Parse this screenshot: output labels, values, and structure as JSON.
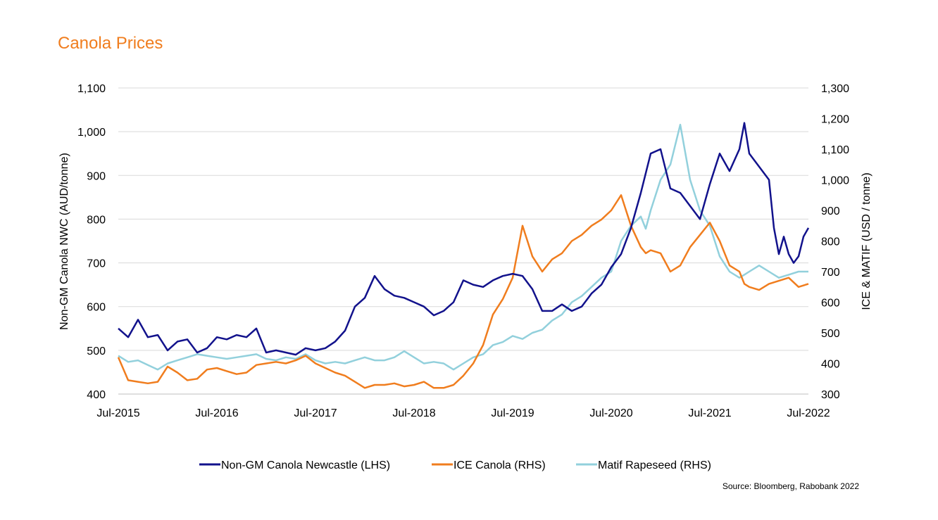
{
  "title": "Canola Prices",
  "source": "Source: Bloomberg, Rabobank 2022",
  "colors": {
    "newcastle": "#12128c",
    "ice": "#f07d1e",
    "matif": "#92d0dc",
    "title": "#f07d1e",
    "grid": "#d9d9d9"
  },
  "chart_data": {
    "type": "line",
    "title": "Canola Prices",
    "xlabel": "",
    "ylabel_left": "Non-GM Canola NWC (AUD/tonne)",
    "ylabel_right": "ICE & MATIF  (USD / tonne)",
    "x_tick_labels": [
      "Jul-2015",
      "Jul-2016",
      "Jul-2017",
      "Jul-2018",
      "Jul-2019",
      "Jul-2020",
      "Jul-2021",
      "Jul-2022"
    ],
    "xlim": [
      2015.5,
      2022.5
    ],
    "y_left_lim": [
      400,
      1100
    ],
    "y_left_ticks": [
      "400",
      "500",
      "600",
      "700",
      "800",
      "900",
      "1,000",
      "1,100"
    ],
    "y_right_lim": [
      300,
      1300
    ],
    "y_right_ticks": [
      "300",
      "400",
      "500",
      "600",
      "700",
      "800",
      "900",
      "1,000",
      "1,100",
      "1,200",
      "1,300"
    ],
    "grid": "horizontal",
    "legend": "bottom",
    "series": [
      {
        "name": "Non-GM Canola Newcastle (LHS)",
        "axis": "left",
        "x": [
          2015.5,
          2015.6,
          2015.7,
          2015.8,
          2015.9,
          2016.0,
          2016.1,
          2016.2,
          2016.3,
          2016.4,
          2016.5,
          2016.6,
          2016.7,
          2016.8,
          2016.9,
          2017.0,
          2017.1,
          2017.2,
          2017.3,
          2017.4,
          2017.5,
          2017.6,
          2017.7,
          2017.8,
          2017.9,
          2018.0,
          2018.1,
          2018.2,
          2018.3,
          2018.4,
          2018.5,
          2018.6,
          2018.7,
          2018.75,
          2018.8,
          2018.9,
          2019.0,
          2019.1,
          2019.2,
          2019.3,
          2019.4,
          2019.5,
          2019.6,
          2019.7,
          2019.8,
          2019.9,
          2020.0,
          2020.1,
          2020.2,
          2020.3,
          2020.4,
          2020.5,
          2020.6,
          2020.7,
          2020.8,
          2020.9,
          2021.0,
          2021.1,
          2021.2,
          2021.3,
          2021.4,
          2021.5,
          2021.6,
          2021.7,
          2021.8,
          2021.85,
          2021.9,
          2022.0,
          2022.1,
          2022.15,
          2022.2,
          2022.25,
          2022.3,
          2022.35,
          2022.4,
          2022.45,
          2022.5
        ],
        "values": [
          550,
          530,
          570,
          530,
          535,
          500,
          520,
          525,
          495,
          505,
          530,
          525,
          535,
          530,
          550,
          495,
          500,
          495,
          490,
          505,
          500,
          505,
          520,
          545,
          600,
          620,
          670,
          640,
          625,
          620,
          610,
          600,
          580,
          585,
          590,
          610,
          660,
          650,
          645,
          660,
          670,
          675,
          670,
          640,
          590,
          590,
          605,
          590,
          600,
          630,
          650,
          690,
          720,
          780,
          860,
          950,
          960,
          870,
          860,
          830,
          800,
          880,
          950,
          910,
          960,
          1020,
          950,
          920,
          890,
          780,
          720,
          760,
          720,
          700,
          715,
          760,
          780
        ]
      },
      {
        "name": "ICE Canola (RHS)",
        "axis": "right",
        "x": [
          2015.5,
          2015.6,
          2015.7,
          2015.8,
          2015.9,
          2016.0,
          2016.1,
          2016.2,
          2016.3,
          2016.4,
          2016.5,
          2016.6,
          2016.7,
          2016.8,
          2016.9,
          2017.0,
          2017.1,
          2017.2,
          2017.3,
          2017.4,
          2017.5,
          2017.6,
          2017.7,
          2017.8,
          2017.9,
          2018.0,
          2018.1,
          2018.2,
          2018.3,
          2018.4,
          2018.5,
          2018.6,
          2018.7,
          2018.8,
          2018.9,
          2019.0,
          2019.1,
          2019.2,
          2019.3,
          2019.4,
          2019.5,
          2019.6,
          2019.7,
          2019.8,
          2019.9,
          2020.0,
          2020.1,
          2020.2,
          2020.3,
          2020.4,
          2020.5,
          2020.6,
          2020.7,
          2020.8,
          2020.85,
          2020.9,
          2021.0,
          2021.1,
          2021.2,
          2021.3,
          2021.4,
          2021.5,
          2021.6,
          2021.7,
          2021.8,
          2021.85,
          2021.9,
          2022.0,
          2022.1,
          2022.2,
          2022.3,
          2022.4,
          2022.5
        ],
        "values": [
          420,
          345,
          340,
          335,
          340,
          390,
          370,
          345,
          350,
          380,
          385,
          375,
          365,
          370,
          395,
          400,
          405,
          400,
          410,
          425,
          400,
          385,
          370,
          360,
          340,
          320,
          330,
          330,
          335,
          325,
          330,
          340,
          320,
          320,
          330,
          360,
          400,
          460,
          560,
          610,
          680,
          850,
          750,
          700,
          740,
          760,
          800,
          820,
          850,
          870,
          900,
          950,
          850,
          780,
          760,
          770,
          760,
          700,
          720,
          780,
          820,
          860,
          800,
          720,
          700,
          660,
          650,
          640,
          660,
          670,
          680,
          650,
          660
        ]
      },
      {
        "name": "Matif Rapeseed (RHS)",
        "axis": "right",
        "x": [
          2015.5,
          2015.6,
          2015.7,
          2015.8,
          2015.9,
          2016.0,
          2016.1,
          2016.2,
          2016.3,
          2016.4,
          2016.5,
          2016.6,
          2016.7,
          2016.8,
          2016.9,
          2017.0,
          2017.1,
          2017.2,
          2017.3,
          2017.4,
          2017.5,
          2017.6,
          2017.7,
          2017.8,
          2017.9,
          2018.0,
          2018.1,
          2018.2,
          2018.3,
          2018.4,
          2018.5,
          2018.6,
          2018.7,
          2018.8,
          2018.9,
          2019.0,
          2019.1,
          2019.2,
          2019.3,
          2019.4,
          2019.5,
          2019.6,
          2019.7,
          2019.8,
          2019.9,
          2020.0,
          2020.1,
          2020.2,
          2020.3,
          2020.4,
          2020.5,
          2020.6,
          2020.7,
          2020.8,
          2020.85,
          2020.9,
          2021.0,
          2021.1,
          2021.2,
          2021.3,
          2021.4,
          2021.5,
          2021.6,
          2021.7,
          2021.8,
          2021.85,
          2021.9,
          2022.0,
          2022.1,
          2022.2,
          2022.3,
          2022.4,
          2022.5
        ],
        "values": [
          425,
          405,
          410,
          395,
          380,
          400,
          410,
          420,
          430,
          425,
          420,
          415,
          420,
          425,
          430,
          415,
          410,
          420,
          415,
          430,
          410,
          400,
          405,
          400,
          410,
          420,
          410,
          410,
          420,
          440,
          420,
          400,
          405,
          400,
          380,
          400,
          420,
          430,
          460,
          470,
          490,
          480,
          500,
          510,
          540,
          560,
          600,
          620,
          650,
          680,
          700,
          800,
          850,
          880,
          840,
          900,
          1000,
          1050,
          1180,
          1000,
          900,
          850,
          750,
          700,
          680,
          690,
          700,
          720,
          700,
          680,
          690,
          700,
          700
        ]
      }
    ]
  }
}
